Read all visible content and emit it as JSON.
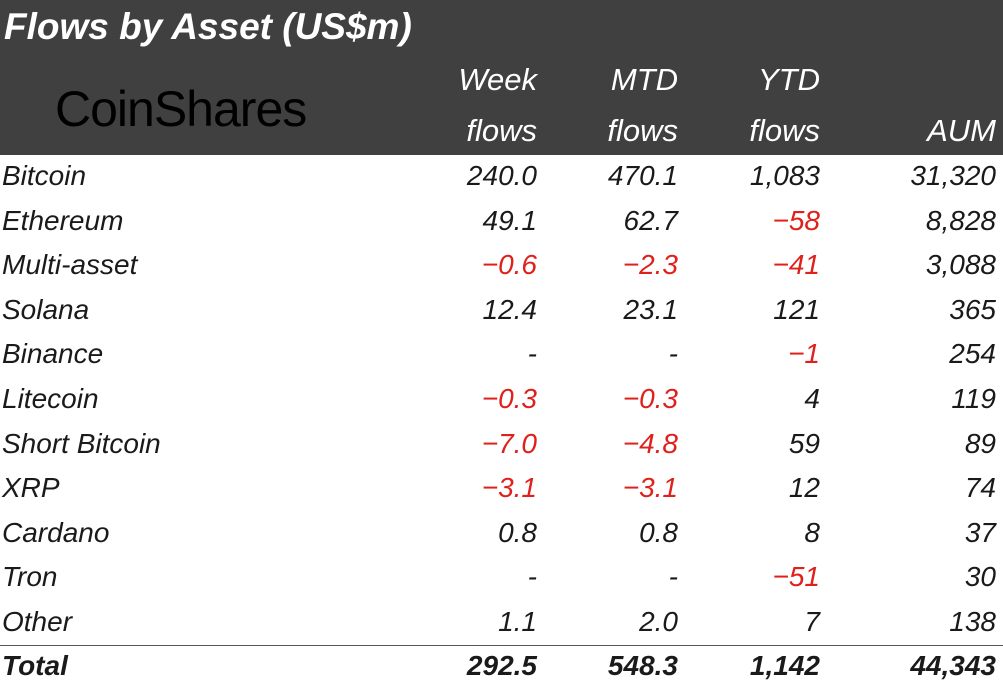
{
  "title": "Flows by Asset (US$m)",
  "brand": "CoinShares",
  "columns": [
    {
      "line1": "Week",
      "line2": "flows"
    },
    {
      "line1": "MTD",
      "line2": "flows"
    },
    {
      "line1": "YTD",
      "line2": "flows"
    },
    {
      "line1": "",
      "line2": "AUM"
    }
  ],
  "colors": {
    "header_bg": "#404040",
    "negative": "#e0201b",
    "text": "#1a1a1a",
    "header_text": "#ffffff"
  },
  "chart_data": {
    "type": "table",
    "columns": [
      "Week flows",
      "MTD flows",
      "YTD flows",
      "AUM"
    ],
    "rows": [
      {
        "asset": "Bitcoin",
        "values": [
          "240.0",
          "470.1",
          "1,083",
          "31,320"
        ]
      },
      {
        "asset": "Ethereum",
        "values": [
          "49.1",
          "62.7",
          "-58",
          "8,828"
        ]
      },
      {
        "asset": "Multi-asset",
        "values": [
          "-0.6",
          "-2.3",
          "-41",
          "3,088"
        ]
      },
      {
        "asset": "Solana",
        "values": [
          "12.4",
          "23.1",
          "121",
          "365"
        ]
      },
      {
        "asset": "Binance",
        "values": [
          "-",
          "-",
          "-1",
          "254"
        ]
      },
      {
        "asset": "Litecoin",
        "values": [
          "-0.3",
          "-0.3",
          "4",
          "119"
        ]
      },
      {
        "asset": "Short Bitcoin",
        "values": [
          "-7.0",
          "-4.8",
          "59",
          "89"
        ]
      },
      {
        "asset": "XRP",
        "values": [
          "-3.1",
          "-3.1",
          "12",
          "74"
        ]
      },
      {
        "asset": "Cardano",
        "values": [
          "0.8",
          "0.8",
          "8",
          "37"
        ]
      },
      {
        "asset": "Tron",
        "values": [
          "-",
          "-",
          "-51",
          "30"
        ]
      },
      {
        "asset": "Other",
        "values": [
          "1.1",
          "2.0",
          "7",
          "138"
        ]
      }
    ],
    "total": {
      "asset": "Total",
      "values": [
        "292.5",
        "548.3",
        "1,142",
        "44,343"
      ]
    }
  }
}
